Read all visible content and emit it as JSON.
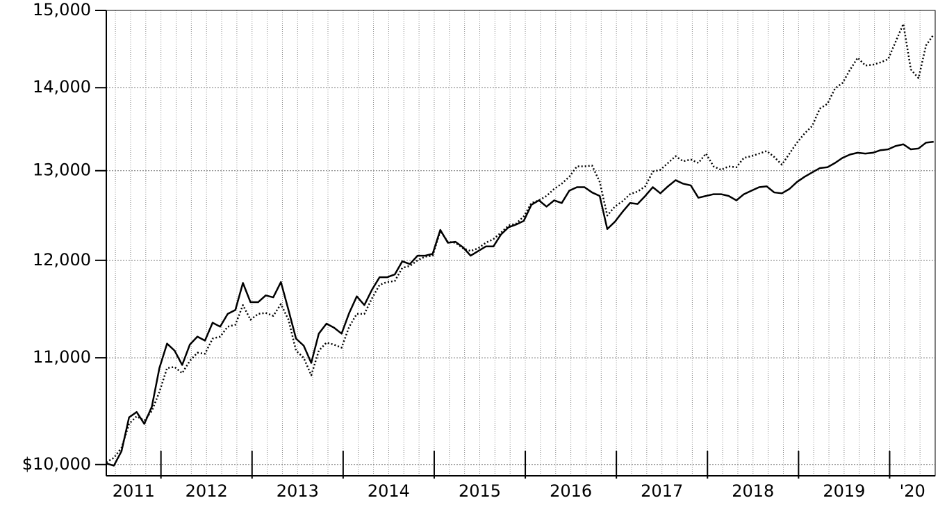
{
  "chart_data": {
    "type": "line",
    "log_y": true,
    "grid": true,
    "x": [
      2011.4,
      2011.483,
      2011.567,
      2011.65,
      2011.733,
      2011.817,
      2011.9,
      2011.983,
      2012.067,
      2012.15,
      2012.233,
      2012.317,
      2012.4,
      2012.483,
      2012.567,
      2012.65,
      2012.733,
      2012.817,
      2012.9,
      2012.983,
      2013.067,
      2013.15,
      2013.233,
      2013.317,
      2013.4,
      2013.483,
      2013.567,
      2013.65,
      2013.733,
      2013.817,
      2013.9,
      2013.983,
      2014.067,
      2014.15,
      2014.233,
      2014.317,
      2014.4,
      2014.483,
      2014.567,
      2014.65,
      2014.733,
      2014.817,
      2014.9,
      2014.983,
      2015.067,
      2015.15,
      2015.233,
      2015.317,
      2015.4,
      2015.483,
      2015.567,
      2015.65,
      2015.733,
      2015.817,
      2015.9,
      2015.983,
      2016.067,
      2016.15,
      2016.233,
      2016.317,
      2016.4,
      2016.483,
      2016.567,
      2016.65,
      2016.733,
      2016.817,
      2016.9,
      2016.983,
      2017.067,
      2017.15,
      2017.233,
      2017.317,
      2017.4,
      2017.483,
      2017.567,
      2017.65,
      2017.733,
      2017.817,
      2017.9,
      2017.983,
      2018.067,
      2018.15,
      2018.233,
      2018.317,
      2018.4,
      2018.483,
      2018.567,
      2018.65,
      2018.733,
      2018.817,
      2018.9,
      2018.983,
      2019.067,
      2019.15,
      2019.233,
      2019.317,
      2019.4,
      2019.483,
      2019.567,
      2019.65,
      2019.733,
      2019.817,
      2019.9,
      2019.983,
      2020.067,
      2020.15,
      2020.233,
      2020.317,
      2020.4,
      2020.483
    ],
    "series": [
      {
        "color": "#000000",
        "style": "solid",
        "values": [
          10010,
          9990,
          10120,
          10430,
          10480,
          10370,
          10530,
          10900,
          11140,
          11070,
          10930,
          11130,
          11210,
          11170,
          11350,
          11310,
          11440,
          11480,
          11760,
          11560,
          11560,
          11630,
          11610,
          11770,
          11480,
          11190,
          11120,
          10950,
          11240,
          11340,
          11300,
          11240,
          11450,
          11620,
          11530,
          11690,
          11820,
          11820,
          11850,
          11990,
          11960,
          12050,
          12050,
          12070,
          12330,
          12190,
          12200,
          12140,
          12050,
          12100,
          12150,
          12150,
          12280,
          12360,
          12390,
          12430,
          12610,
          12660,
          12590,
          12660,
          12630,
          12770,
          12810,
          12810,
          12750,
          12710,
          12340,
          12420,
          12530,
          12630,
          12620,
          12710,
          12810,
          12740,
          12820,
          12890,
          12850,
          12830,
          12690,
          12710,
          12730,
          12730,
          12710,
          12660,
          12730,
          12770,
          12810,
          12820,
          12750,
          12740,
          12790,
          12870,
          12930,
          12980,
          13030,
          13040,
          13090,
          13150,
          13190,
          13210,
          13200,
          13210,
          13240,
          13250,
          13290,
          13310,
          13250,
          13260,
          13330,
          13340
        ]
      },
      {
        "color": "#000000",
        "style": "dotted",
        "values": [
          10020,
          10060,
          10150,
          10370,
          10440,
          10400,
          10490,
          10670,
          10900,
          10910,
          10850,
          10970,
          11050,
          11040,
          11190,
          11210,
          11310,
          11330,
          11530,
          11380,
          11440,
          11450,
          11420,
          11540,
          11380,
          11070,
          11000,
          10830,
          11070,
          11150,
          11130,
          11100,
          11310,
          11440,
          11440,
          11600,
          11740,
          11770,
          11780,
          11920,
          11940,
          12000,
          12040,
          12050,
          12320,
          12200,
          12190,
          12130,
          12100,
          12130,
          12190,
          12230,
          12300,
          12380,
          12400,
          12480,
          12630,
          12660,
          12710,
          12790,
          12850,
          12930,
          13050,
          13050,
          13060,
          12870,
          12490,
          12590,
          12650,
          12730,
          12760,
          12820,
          12990,
          13010,
          13090,
          13170,
          13110,
          13130,
          13090,
          13200,
          13050,
          13010,
          13050,
          13040,
          13150,
          13170,
          13200,
          13230,
          13160,
          13070,
          13200,
          13330,
          13440,
          13530,
          13740,
          13800,
          13990,
          14060,
          14230,
          14380,
          14280,
          14290,
          14320,
          14360,
          14590,
          14820,
          14230,
          14120,
          14540,
          14680
        ]
      }
    ],
    "xlim": [
      2011.4,
      2020.5
    ],
    "xticks": [
      2011,
      2012,
      2013,
      2014,
      2015,
      2016,
      2017,
      2018,
      2019,
      {
        "value": 2020,
        "label": "'20"
      }
    ],
    "ylim": [
      9900,
      15000
    ],
    "yticks": [
      {
        "value": 10000,
        "label": "$10,000"
      },
      {
        "value": 11000,
        "label": "11,000"
      },
      {
        "value": 12000,
        "label": "12,000"
      },
      {
        "value": 13000,
        "label": "13,000"
      },
      {
        "value": 14000,
        "label": "14,000"
      },
      {
        "value": 15000,
        "label": "15,000"
      }
    ]
  }
}
